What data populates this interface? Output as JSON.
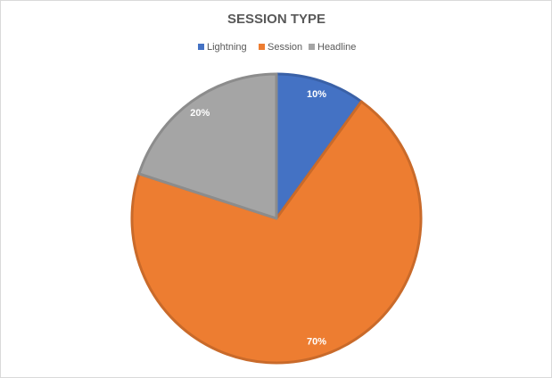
{
  "chart_data": {
    "type": "pie",
    "title": "SESSION TYPE",
    "categories": [
      "Lightning",
      "Session",
      "Headline"
    ],
    "values": [
      10,
      70,
      20
    ],
    "value_labels": [
      "10%",
      "70%",
      "20%"
    ],
    "colors": [
      "#4472c4",
      "#ed7d31",
      "#a5a5a5"
    ],
    "legend": "top"
  }
}
